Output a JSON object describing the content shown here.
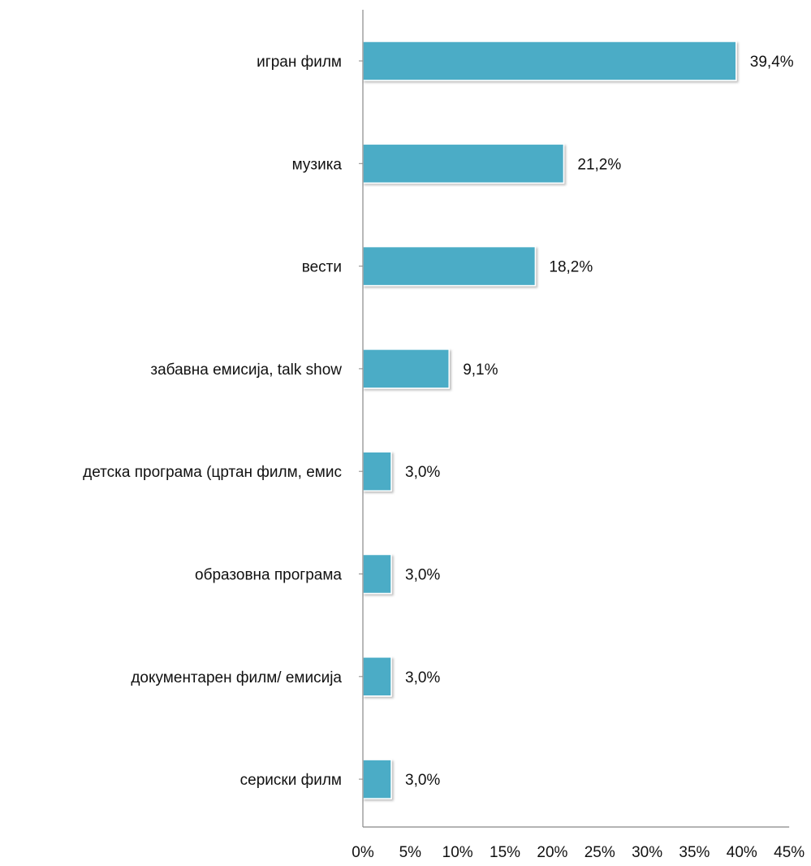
{
  "chart_data": {
    "type": "bar",
    "orientation": "horizontal",
    "categories": [
      "игран филм",
      "музика",
      "вести",
      "забавна емисија, talk show",
      "детска програма (цртан филм, емис",
      "образовна програма",
      "документарен филм/ емисија",
      "сериски филм"
    ],
    "values": [
      39.4,
      21.2,
      18.2,
      9.1,
      3.0,
      3.0,
      3.0,
      3.0
    ],
    "value_labels": [
      "39,4%",
      "21,2%",
      "18,2%",
      "9,1%",
      "3,0%",
      "3,0%",
      "3,0%",
      "3,0%"
    ],
    "xlim": [
      0,
      45
    ],
    "x_ticks": [
      0,
      5,
      10,
      15,
      20,
      25,
      30,
      35,
      40,
      45
    ],
    "x_tick_labels": [
      "0%",
      "5%",
      "10%",
      "15%",
      "20%",
      "25%",
      "30%",
      "35%",
      "40%",
      "45%"
    ],
    "title": "",
    "xlabel": "",
    "ylabel": "",
    "grid": false,
    "legend": "none",
    "bar_color": "#4BACC6"
  }
}
